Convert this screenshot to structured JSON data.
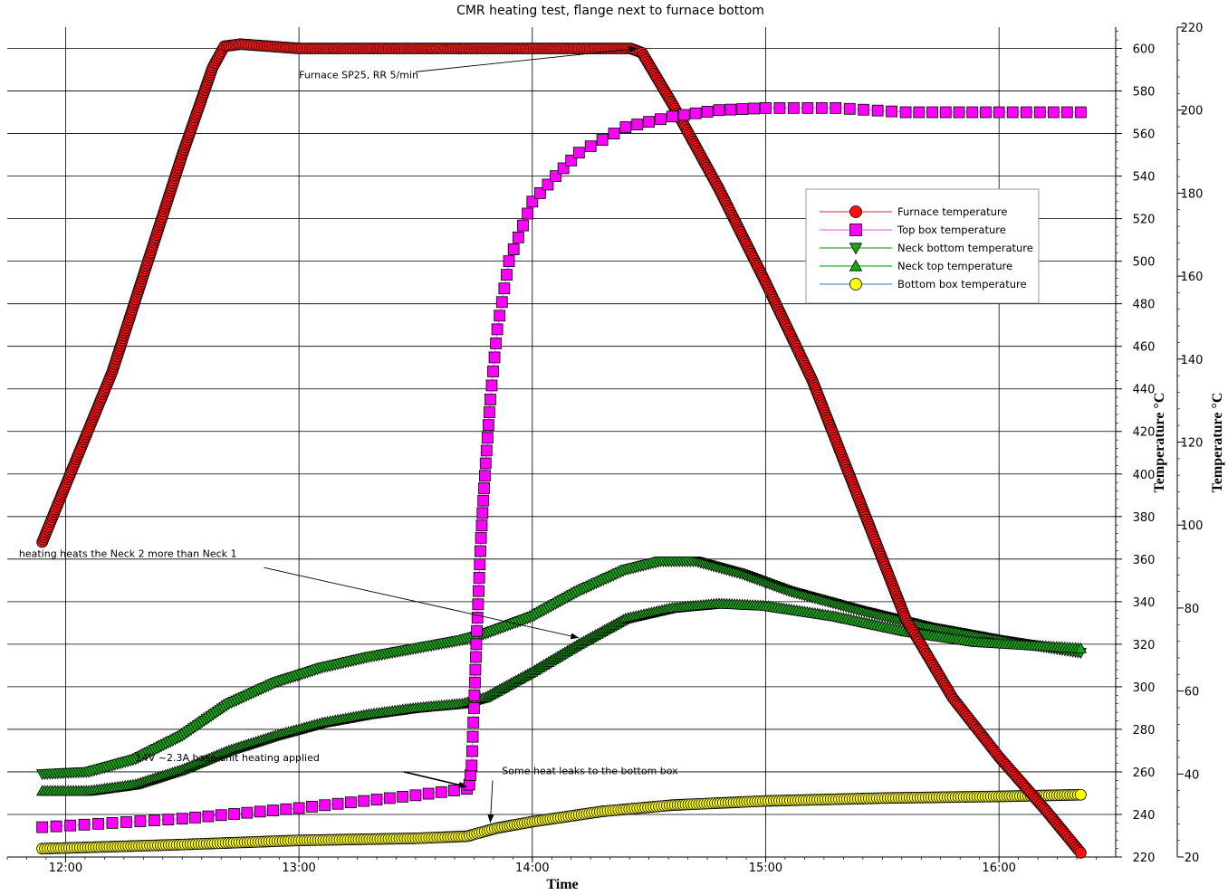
{
  "chart_data": {
    "type": "line",
    "title": "CMR heating test, flange next to furnace bottom",
    "xlabel": "Time",
    "ylabel_left": "Temperature °C",
    "ylabel_right": "Temperature °C",
    "x_ticks": [
      "12:00",
      "13:00",
      "14:00",
      "15:00",
      "16:00"
    ],
    "x_tick_hours": [
      12,
      13,
      14,
      15,
      16
    ],
    "xlim_hours": [
      11.75,
      16.5
    ],
    "y_left_lim": [
      220,
      610
    ],
    "y_left_ticks": [
      220,
      240,
      260,
      280,
      300,
      320,
      340,
      360,
      380,
      400,
      420,
      440,
      460,
      480,
      500,
      520,
      540,
      560,
      580,
      600
    ],
    "y_right_lim": [
      20,
      220
    ],
    "y_right_ticks": [
      20,
      40,
      60,
      80,
      100,
      120,
      140,
      160,
      180,
      200,
      220
    ],
    "grid": true,
    "legend_position": "center-right",
    "series": [
      {
        "name": "Furnace temperature",
        "axis": "left",
        "marker": "circle",
        "color": "#ff1010",
        "line_color": "#e05050",
        "points": [
          [
            11.9,
            368
          ],
          [
            12.2,
            448
          ],
          [
            12.5,
            550
          ],
          [
            12.63,
            591
          ],
          [
            12.68,
            601
          ],
          [
            12.75,
            602
          ],
          [
            13.0,
            600
          ],
          [
            13.5,
            600
          ],
          [
            14.2,
            600
          ],
          [
            14.42,
            600
          ],
          [
            14.47,
            598
          ],
          [
            14.6,
            574
          ],
          [
            14.8,
            534
          ],
          [
            15.0,
            490
          ],
          [
            15.2,
            444
          ],
          [
            15.4,
            388
          ],
          [
            15.6,
            332
          ],
          [
            15.8,
            295
          ],
          [
            16.0,
            267
          ],
          [
            16.2,
            242
          ],
          [
            16.35,
            222
          ]
        ]
      },
      {
        "name": "Top box temperature",
        "axis": "left",
        "marker": "square",
        "color": "#ff00ff",
        "line_color": "#ff66ff",
        "points": [
          [
            11.9,
            234
          ],
          [
            12.5,
            238
          ],
          [
            13.0,
            243
          ],
          [
            13.5,
            249
          ],
          [
            13.72,
            252
          ],
          [
            13.73,
            254
          ],
          [
            13.74,
            263
          ],
          [
            13.75,
            290
          ],
          [
            13.76,
            320
          ],
          [
            13.78,
            370
          ],
          [
            13.8,
            405
          ],
          [
            13.82,
            435
          ],
          [
            13.85,
            468
          ],
          [
            13.9,
            500
          ],
          [
            14.0,
            528
          ],
          [
            14.1,
            540
          ],
          [
            14.2,
            551
          ],
          [
            14.4,
            563
          ],
          [
            14.6,
            568
          ],
          [
            14.8,
            571
          ],
          [
            15.0,
            572
          ],
          [
            15.3,
            572
          ],
          [
            15.6,
            570
          ],
          [
            16.0,
            570
          ],
          [
            16.35,
            570
          ]
        ]
      },
      {
        "name": "Neck bottom temperature",
        "axis": "left",
        "marker": "triangle-down",
        "color": "#11aa11",
        "line_color": "#33aa33",
        "points": [
          [
            11.9,
            259
          ],
          [
            12.1,
            260
          ],
          [
            12.3,
            266
          ],
          [
            12.5,
            277
          ],
          [
            12.7,
            292
          ],
          [
            12.9,
            302
          ],
          [
            13.1,
            309
          ],
          [
            13.3,
            314
          ],
          [
            13.5,
            318
          ],
          [
            13.7,
            322
          ],
          [
            13.8,
            325
          ],
          [
            14.0,
            333
          ],
          [
            14.2,
            345
          ],
          [
            14.4,
            355
          ],
          [
            14.55,
            359
          ],
          [
            14.7,
            359
          ],
          [
            14.9,
            353
          ],
          [
            15.1,
            345
          ],
          [
            15.4,
            336
          ],
          [
            15.7,
            328
          ],
          [
            16.0,
            322
          ],
          [
            16.35,
            316
          ]
        ]
      },
      {
        "name": "Neck top temperature",
        "axis": "left",
        "marker": "triangle-up",
        "color": "#11aa11",
        "line_color": "#33aa33",
        "points": [
          [
            11.9,
            251
          ],
          [
            12.1,
            251
          ],
          [
            12.3,
            254
          ],
          [
            12.5,
            261
          ],
          [
            12.7,
            270
          ],
          [
            12.9,
            277
          ],
          [
            13.1,
            283
          ],
          [
            13.3,
            287
          ],
          [
            13.5,
            290
          ],
          [
            13.7,
            292
          ],
          [
            13.8,
            295
          ],
          [
            14.0,
            307
          ],
          [
            14.2,
            320
          ],
          [
            14.4,
            332
          ],
          [
            14.6,
            337
          ],
          [
            14.8,
            339
          ],
          [
            15.0,
            338
          ],
          [
            15.3,
            333
          ],
          [
            15.6,
            326
          ],
          [
            15.9,
            321
          ],
          [
            16.35,
            318
          ]
        ]
      },
      {
        "name": "Bottom box temperature",
        "axis": "right",
        "marker": "circle",
        "color": "#ffff00",
        "line_color": "#6090c0",
        "points": [
          [
            11.9,
            22
          ],
          [
            12.5,
            23
          ],
          [
            13.0,
            24
          ],
          [
            13.5,
            24.5
          ],
          [
            13.72,
            25
          ],
          [
            13.85,
            27
          ],
          [
            14.0,
            28.5
          ],
          [
            14.3,
            31
          ],
          [
            14.6,
            32.5
          ],
          [
            15.0,
            33.5
          ],
          [
            15.5,
            34.2
          ],
          [
            16.0,
            34.6
          ],
          [
            16.35,
            35
          ]
        ]
      }
    ],
    "annotations": [
      {
        "text": "Furnace SP25, RR 5/min",
        "text_at": [
          13.0,
          586
        ],
        "arrow_from": [
          13.5,
          589
        ],
        "arrow_to": [
          14.45,
          600
        ]
      },
      {
        "text": "heating heats the Neck 2 more than Neck 1",
        "text_at": [
          11.8,
          361
        ],
        "arrow_from": [
          12.85,
          356
        ],
        "arrow_to": [
          14.2,
          323
        ]
      },
      {
        "text": "14V ~2.3A base unit heating applied",
        "text_at": [
          12.3,
          265
        ],
        "arrow_from": [
          13.45,
          260
        ],
        "arrow_to": [
          13.72,
          253
        ]
      },
      {
        "text": "Some heat leaks to the bottom box",
        "text_at": [
          13.87,
          259
        ],
        "arrow_from": [
          13.83,
          256
        ],
        "arrow_to": [
          13.82,
          236
        ]
      }
    ]
  }
}
